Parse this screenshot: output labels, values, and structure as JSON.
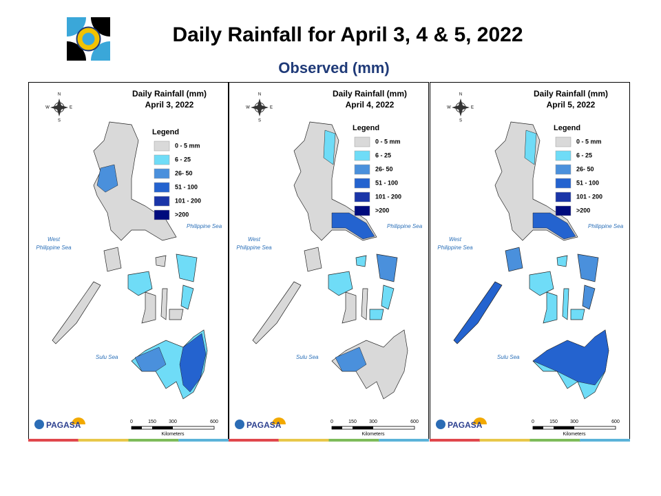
{
  "title": "Daily Rainfall for April 3, 4 & 5, 2022",
  "subtitle": "Observed (mm)",
  "panels": [
    {
      "heading": "Daily Rainfall (mm)",
      "date": "April 3, 2022",
      "legend_title": "Legend",
      "legend": [
        {
          "label": "0 - 5 mm",
          "color": "#d9d9d9"
        },
        {
          "label": "6 - 25",
          "color": "#6fdcf7"
        },
        {
          "label": "26- 50",
          "color": "#4a90dc"
        },
        {
          "label": "51 - 100",
          "color": "#2463cf"
        },
        {
          "label": "101 - 200",
          "color": "#1a35a8"
        },
        {
          "label": ">200",
          "color": "#000b7d"
        }
      ],
      "sea_labels": {
        "philippine_sea": "Philippine Sea",
        "west_philippine_sea": [
          "West",
          "Philippine Sea"
        ],
        "sulu_sea": "Sulu Sea"
      },
      "compass": {
        "n": "N",
        "e": "E",
        "s": "S",
        "w": "W"
      },
      "scale": {
        "ticks": [
          "0",
          "150",
          "300",
          "600"
        ],
        "unit": "Kilometers"
      },
      "logo": "PAGASA"
    },
    {
      "heading": "Daily Rainfall (mm)",
      "date": "April 4, 2022",
      "legend_title": "Legend",
      "legend": [
        {
          "label": "0 - 5 mm",
          "color": "#d9d9d9"
        },
        {
          "label": "6 - 25",
          "color": "#6fdcf7"
        },
        {
          "label": "26- 50",
          "color": "#4a90dc"
        },
        {
          "label": "51 - 100",
          "color": "#2463cf"
        },
        {
          "label": "101 - 200",
          "color": "#1a35a8"
        },
        {
          "label": ">200",
          "color": "#000b7d"
        }
      ],
      "sea_labels": {
        "philippine_sea": "Philippine Sea",
        "west_philippine_sea": [
          "West",
          "Philippine Sea"
        ],
        "sulu_sea": "Sulu Sea"
      },
      "compass": {
        "n": "N",
        "e": "E",
        "s": "S",
        "w": "W"
      },
      "scale": {
        "ticks": [
          "0",
          "150",
          "300",
          "600"
        ],
        "unit": "Kilometers"
      },
      "logo": "PAGASA"
    },
    {
      "heading": "Daily Rainfall (mm)",
      "date": "April 5, 2022",
      "legend_title": "Legend",
      "legend": [
        {
          "label": "0 - 5 mm",
          "color": "#d9d9d9"
        },
        {
          "label": "6 - 25",
          "color": "#6fdcf7"
        },
        {
          "label": "26- 50",
          "color": "#4a90dc"
        },
        {
          "label": "51 - 100",
          "color": "#2463cf"
        },
        {
          "label": "101 - 200",
          "color": "#1a35a8"
        },
        {
          "label": ">200",
          "color": "#000b7d"
        }
      ],
      "sea_labels": {
        "philippine_sea": "Philippine Sea",
        "west_philippine_sea": [
          "West",
          "Philippine Sea"
        ],
        "sulu_sea": "Sulu Sea"
      },
      "compass": {
        "n": "N",
        "e": "E",
        "s": "S",
        "w": "W"
      },
      "scale": {
        "ticks": [
          "0",
          "150",
          "300",
          "600"
        ],
        "unit": "Kilometers"
      },
      "logo": "PAGASA"
    }
  ]
}
